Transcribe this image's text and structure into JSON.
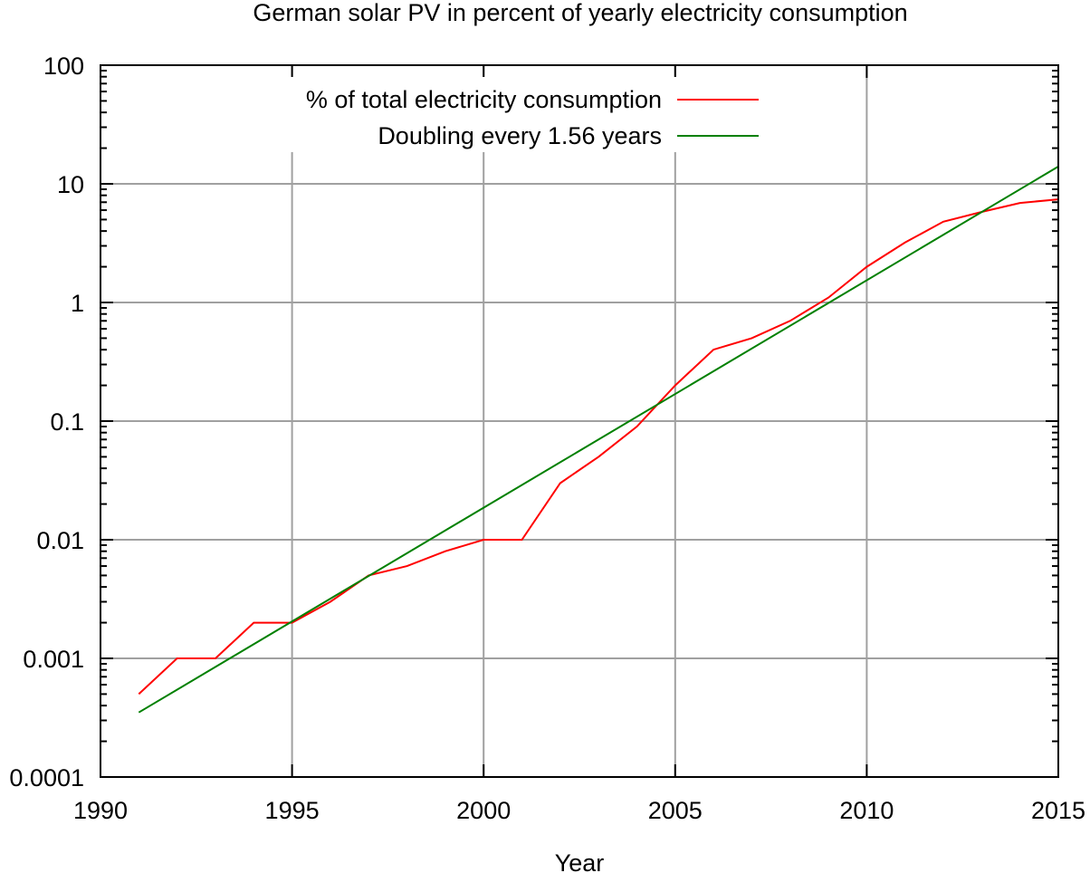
{
  "chart_data": {
    "type": "line",
    "title": "German solar PV in percent of yearly electricity consumption",
    "xlabel": "Year",
    "ylabel": "",
    "xlim": [
      1990,
      2015
    ],
    "ylim": [
      0.0001,
      100
    ],
    "yscale": "log",
    "grid": true,
    "legend_position": "top",
    "x_ticks": [
      "1990",
      "1995",
      "2000",
      "2005",
      "2010",
      "2015"
    ],
    "y_ticks": [
      "0.0001",
      "0.001",
      "0.01",
      "0.1",
      "1",
      "10",
      "100"
    ],
    "series": [
      {
        "name": "% of total electricity consumption",
        "color": "#ff0000",
        "x": [
          1991,
          1992,
          1993,
          1994,
          1995,
          1996,
          1997,
          1998,
          1999,
          2000,
          2001,
          2002,
          2003,
          2004,
          2005,
          2006,
          2007,
          2008,
          2009,
          2010,
          2011,
          2012,
          2013,
          2014,
          2015
        ],
        "y": [
          0.0005,
          0.001,
          0.001,
          0.002,
          0.002,
          0.003,
          0.005,
          0.006,
          0.008,
          0.01,
          0.01,
          0.03,
          0.05,
          0.09,
          0.2,
          0.4,
          0.5,
          0.7,
          1.1,
          2.0,
          3.2,
          4.8,
          5.8,
          6.9,
          7.4
        ]
      },
      {
        "name": "Doubling every 1.56 years",
        "color": "#008000",
        "x": [
          1991,
          2015
        ],
        "y": [
          0.00035,
          14
        ]
      }
    ]
  }
}
